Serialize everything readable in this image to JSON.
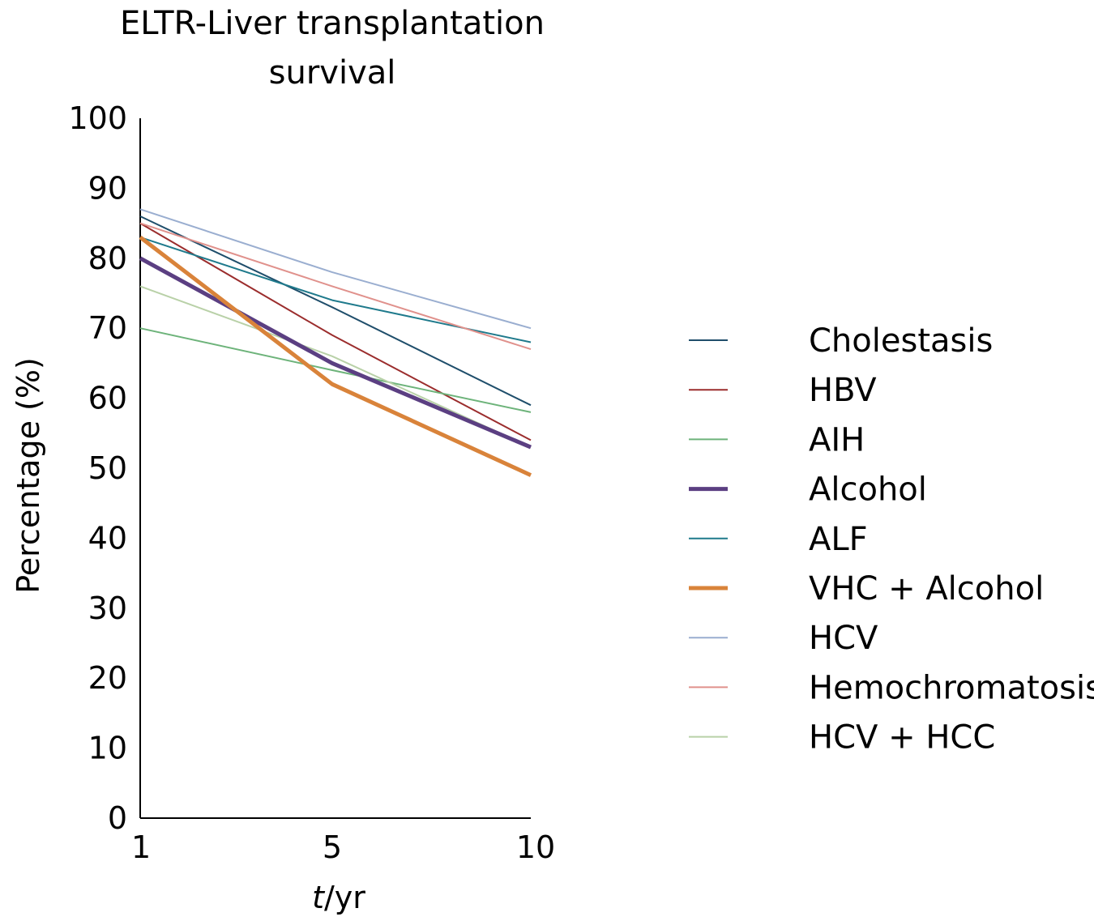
{
  "chart_data": {
    "type": "line",
    "title": [
      "ELTR-Liver transplantation",
      "survival"
    ],
    "xlabel_italic": "t",
    "xlabel_rest": "/yr",
    "ylabel": "Percentage (%)",
    "x": [
      "1",
      "5",
      "10"
    ],
    "ylim": [
      0,
      100
    ],
    "yticks": [
      "0",
      "10",
      "20",
      "30",
      "40",
      "50",
      "60",
      "70",
      "80",
      "90",
      "100"
    ],
    "grid": false,
    "legend_position": "right",
    "series": [
      {
        "name": "Cholestasis",
        "values": [
          86,
          73,
          59
        ],
        "color": "#1f4e6b",
        "width": 2
      },
      {
        "name": "HBV",
        "values": [
          85,
          69,
          54
        ],
        "color": "#9b2d2d",
        "width": 2
      },
      {
        "name": "AIH",
        "values": [
          70,
          64,
          58
        ],
        "color": "#6db37a",
        "width": 2
      },
      {
        "name": "Alcohol",
        "values": [
          80,
          65,
          53
        ],
        "color": "#5b3f82",
        "width": 5
      },
      {
        "name": "ALF",
        "values": [
          83,
          74,
          68
        ],
        "color": "#1f7a8c",
        "width": 2
      },
      {
        "name": "VHC + Alcohol",
        "values": [
          83,
          62,
          49
        ],
        "color": "#d9833a",
        "width": 5
      },
      {
        "name": "HCV",
        "values": [
          87,
          78,
          70
        ],
        "color": "#9aaed0",
        "width": 2
      },
      {
        "name": "Hemochromatosis",
        "values": [
          85,
          76,
          67
        ],
        "color": "#e0918c",
        "width": 2
      },
      {
        "name": "HCV + HCC",
        "values": [
          76,
          66,
          53
        ],
        "color": "#b9d1a8",
        "width": 2
      }
    ]
  }
}
